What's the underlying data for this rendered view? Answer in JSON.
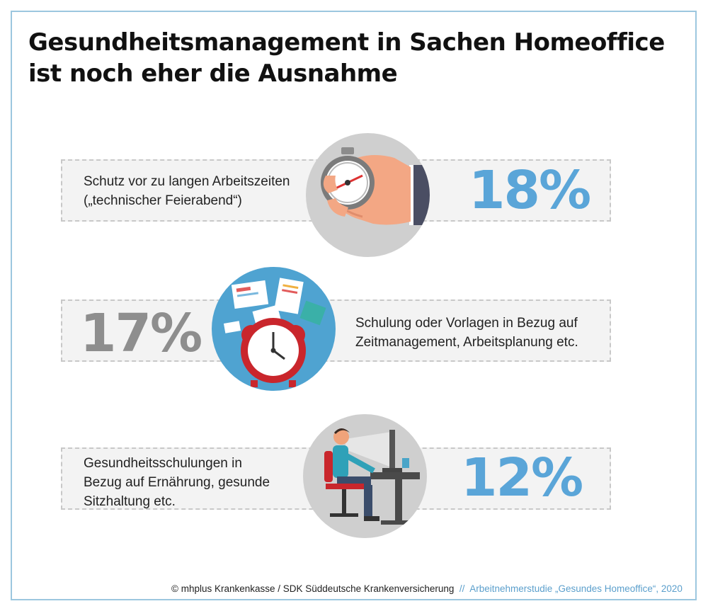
{
  "title_line1": "Gesundheitsmanagement in Sachen Homeoffice",
  "title_line2": "ist noch eher die Ausnahme",
  "chart_data": {
    "type": "bar",
    "categories": [
      "Schutz vor zu langen Arbeitszeiten („technischer Feierabend“)",
      "Schulung oder Vorlagen in Bezug auf Zeitmanagement, Arbeitsplanung etc.",
      "Gesundheitsschulungen in Bezug auf Ernährung, gesunde Sitzhaltung etc."
    ],
    "values": [
      18,
      17,
      12
    ],
    "unit": "%"
  },
  "items": [
    {
      "label": "Schutz vor zu langen Arbeitszeiten\n(„technischer Feierabend“)",
      "percent": "18%",
      "icon": "stopwatch-in-hand-icon",
      "color": "#5aa5d8"
    },
    {
      "label": "Schulung oder Vorlagen in Bezug auf\nZeitmanagement, Arbeitsplanung etc.",
      "percent": "17%",
      "icon": "alarm-clock-documents-icon",
      "color": "#8e8e8e"
    },
    {
      "label": "Gesundheitsschulungen in\nBezug auf Ernährung, gesunde\nSitzhaltung etc.",
      "percent": "12%",
      "icon": "person-at-desk-icon",
      "color": "#5aa5d8"
    }
  ],
  "footer": {
    "copyright": "© mhplus Krankenkasse / SDK Süddeutsche Krankenversicherung",
    "separator": "  //  ",
    "source": "Arbeitnehmerstudie „Gesundes Homeoffice“, 2020"
  }
}
